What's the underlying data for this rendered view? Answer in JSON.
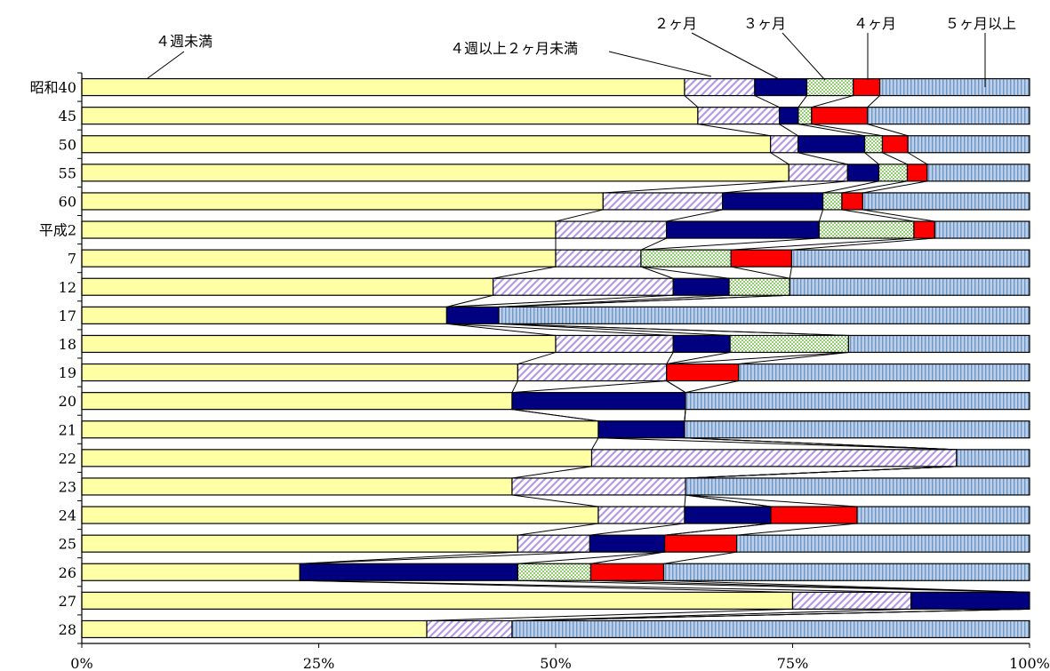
{
  "chart_data": {
    "type": "bar",
    "orientation": "horizontal",
    "stacked": "percent",
    "categories": [
      "昭和40",
      "45",
      "50",
      "55",
      "60",
      "平成2",
      "7",
      "12",
      "17",
      "18",
      "19",
      "20",
      "21",
      "22",
      "23",
      "24",
      "25",
      "26",
      "27",
      "28"
    ],
    "xtick_labels": [
      "0%",
      "25%",
      "50%",
      "75%",
      "100%"
    ],
    "xlim": [
      0,
      100
    ],
    "series": [
      {
        "name": "４週未満",
        "color": "#ffffa6",
        "pattern": "solid",
        "values": [
          63.6,
          65,
          70.2,
          74.6,
          55,
          50,
          50,
          43.4,
          38.5,
          50,
          46,
          45.4,
          54.5,
          53.8,
          45.4,
          54.5,
          46,
          23,
          75,
          36.4
        ]
      },
      {
        "name": "４週以上２ヶ月未満",
        "color": "#c9b3f0",
        "pattern": "diagonal",
        "values": [
          7.4,
          8.6,
          2.8,
          6.2,
          12.6,
          11.7,
          9,
          19,
          0,
          12.4,
          15.7,
          0,
          0,
          38.5,
          18.3,
          9.1,
          7.6,
          0,
          12.5,
          9
        ]
      },
      {
        "name": "２ヶ月",
        "color": "#000080",
        "pattern": "solid",
        "values": [
          5.5,
          2,
          6.8,
          3.3,
          10.6,
          16.1,
          0,
          5.9,
          5.5,
          6,
          0,
          18.3,
          9.1,
          0,
          0,
          9.1,
          7.9,
          23,
          12.5,
          0
        ]
      },
      {
        "name": "３ヶ月",
        "color": "#b5e69a",
        "pattern": "checker",
        "values": [
          4.9,
          1.4,
          1.8,
          3,
          2,
          10,
          9.5,
          6.4,
          0,
          12.5,
          0,
          0,
          0,
          0,
          0,
          0,
          0,
          7.7,
          0,
          0
        ]
      },
      {
        "name": "４ヶ月",
        "color": "#ff0000",
        "pattern": "solid",
        "values": [
          2.8,
          5.9,
          2.6,
          2.1,
          2.2,
          2.2,
          6.4,
          0,
          0,
          0,
          7.6,
          0,
          0,
          0,
          0,
          9.1,
          7.6,
          7.7,
          0,
          0
        ]
      },
      {
        "name": "５ヶ月以上",
        "color": "#a6c0e0",
        "pattern": "vertical",
        "values": [
          15.8,
          17.1,
          12.4,
          10.8,
          17.6,
          10,
          25.1,
          25.3,
          56,
          19.1,
          30.7,
          36.3,
          36.4,
          7.7,
          36.3,
          18.2,
          30.9,
          38.6,
          0,
          54.6
        ]
      }
    ],
    "legend_placement": "top"
  }
}
